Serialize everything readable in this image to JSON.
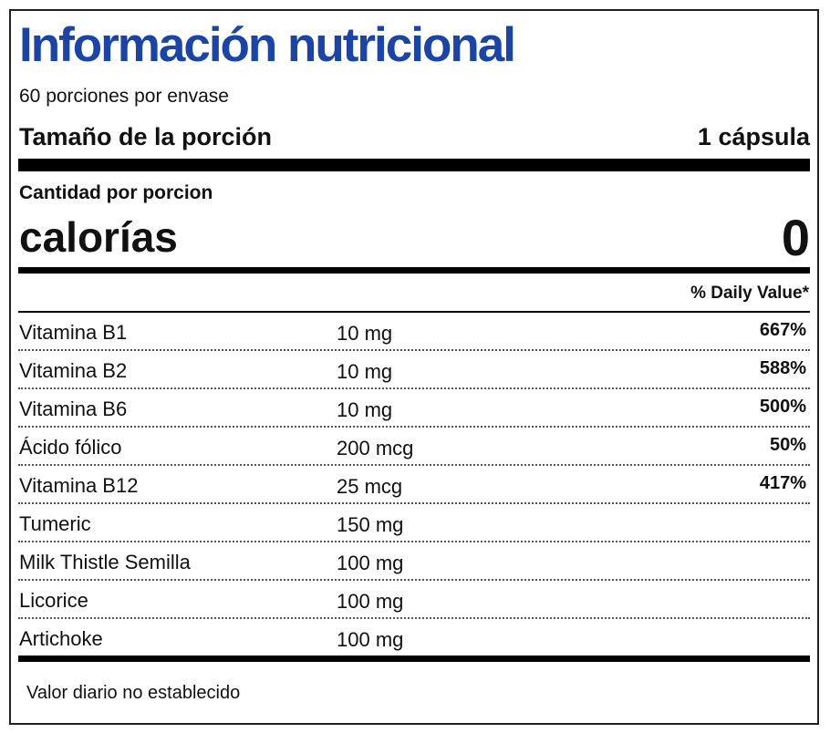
{
  "label": {
    "title": "Información nutricional",
    "title_color": "#1a44a8",
    "servings_per_container": "60 porciones por envase",
    "serving_size_label": "Tamaño de la porción",
    "serving_size_value": "1 cápsula",
    "amount_per_serving": "Cantidad por porcion",
    "calories_label": "calorías",
    "calories_value": "0",
    "daily_value_header": "% Daily Value*",
    "nutrients": [
      {
        "name": "Vitamina B1",
        "amount": "10 mg",
        "dv": "667%"
      },
      {
        "name": "Vitamina B2",
        "amount": "10 mg",
        "dv": "588%"
      },
      {
        "name": "Vitamina B6",
        "amount": "10 mg",
        "dv": "500%"
      },
      {
        "name": "Ácido fólico",
        "amount": "200 mcg",
        "dv": "50%"
      },
      {
        "name": "Vitamina B12",
        "amount": "25 mcg",
        "dv": "417%"
      },
      {
        "name": "Tumeric",
        "amount": "150 mg",
        "dv": ""
      },
      {
        "name": "Milk Thistle Semilla",
        "amount": "100 mg",
        "dv": ""
      },
      {
        "name": "Licorice",
        "amount": "100 mg",
        "dv": ""
      },
      {
        "name": "Artichoke",
        "amount": "100 mg",
        "dv": ""
      }
    ],
    "footnote": "Valor diario no establecido"
  }
}
